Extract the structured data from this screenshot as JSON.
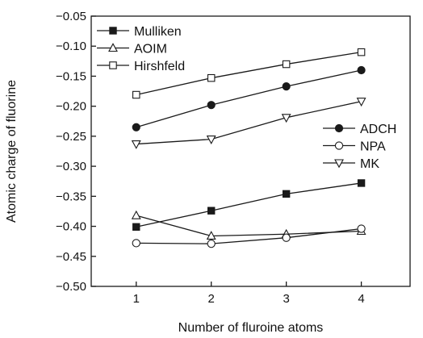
{
  "chart_data": {
    "type": "line",
    "title": "",
    "xlabel": "Number of fluroine atoms",
    "ylabel": "Atomic charge of fluorine",
    "x": [
      1,
      2,
      3,
      4
    ],
    "xticks": [
      1,
      2,
      3,
      4
    ],
    "xtick_labels": [
      "1",
      "2",
      "3",
      "4"
    ],
    "xlim": [
      0.4,
      4.65
    ],
    "ylim": [
      -0.5,
      -0.05
    ],
    "yticks": [
      -0.5,
      -0.45,
      -0.4,
      -0.35,
      -0.3,
      -0.25,
      -0.2,
      -0.15,
      -0.1,
      -0.05
    ],
    "ytick_labels": [
      "−0.50",
      "−0.45",
      "−0.40",
      "−0.35",
      "−0.30",
      "−0.25",
      "−0.20",
      "−0.15",
      "−0.10",
      "−0.05"
    ],
    "grid": false,
    "series_color": "#1a1a1a",
    "series": [
      {
        "name": "Mulliken",
        "marker": "square-filled",
        "values": [
          -0.401,
          -0.374,
          -0.346,
          -0.328
        ]
      },
      {
        "name": "AOIM",
        "marker": "triangle-up-open",
        "values": [
          -0.382,
          -0.416,
          -0.413,
          -0.408
        ]
      },
      {
        "name": "Hirshfeld",
        "marker": "square-open",
        "values": [
          -0.181,
          -0.153,
          -0.13,
          -0.11
        ]
      },
      {
        "name": "ADCH",
        "marker": "circle-filled",
        "values": [
          -0.235,
          -0.198,
          -0.167,
          -0.14
        ]
      },
      {
        "name": "NPA",
        "marker": "circle-open",
        "values": [
          -0.428,
          -0.429,
          -0.419,
          -0.404
        ]
      },
      {
        "name": "MK",
        "marker": "triangle-down-open",
        "values": [
          -0.263,
          -0.255,
          -0.219,
          -0.192
        ]
      }
    ],
    "legends": [
      {
        "placement": "top-left",
        "entries": [
          "Mulliken",
          "AOIM",
          "Hirshfeld"
        ]
      },
      {
        "placement": "middle-right",
        "entries": [
          "ADCH",
          "NPA",
          "MK"
        ]
      }
    ]
  }
}
